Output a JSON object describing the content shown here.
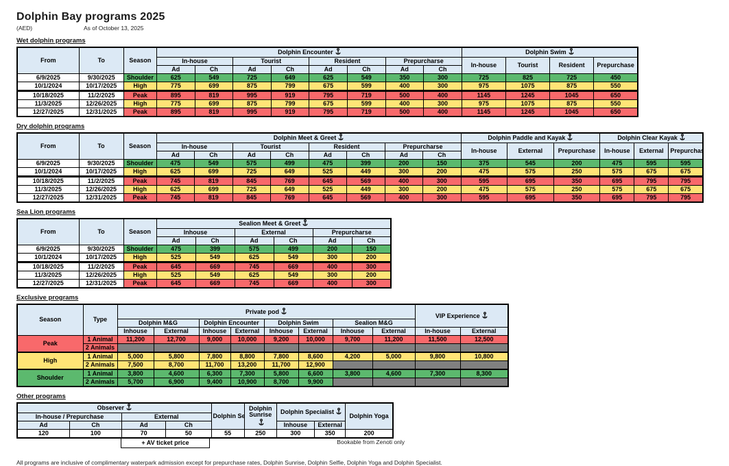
{
  "header": {
    "title": "Dolphin Bay programs 2025",
    "currency": "(AED)",
    "as_of": "As of October 13, 2025"
  },
  "labels": {
    "from": "From",
    "to": "To",
    "season": "Season",
    "type": "Type",
    "ad": "Ad",
    "ch": "Ch",
    "in_house": "In-house",
    "inhouse": "Inhouse",
    "tourist": "Tourist",
    "resident": "Resident",
    "external": "External",
    "prepurchase": "Prepurchase",
    "prepurcharse": "Prepurcharse"
  },
  "wet": {
    "section_title": "Wet dolphin programs",
    "encounter_title": "Dolphin Encounter",
    "swim_title": "Dolphin Swim",
    "rows": [
      {
        "from": "6/9/2025",
        "to": "9/30/2025",
        "season": "Shoulder",
        "tone": "shoulder",
        "values": [
          625,
          549,
          725,
          649,
          625,
          549,
          350,
          300,
          725,
          825,
          725,
          450
        ]
      },
      {
        "from": "10/1/2024",
        "to": "10/17/2025",
        "season": "High",
        "tone": "high",
        "thick": true,
        "values": [
          775,
          699,
          875,
          799,
          675,
          599,
          400,
          300,
          975,
          1075,
          875,
          550
        ]
      },
      {
        "from": "10/18/2025",
        "to": "11/2/2025",
        "season": "Peak",
        "tone": "peak",
        "values": [
          895,
          819,
          995,
          919,
          795,
          719,
          500,
          400,
          1145,
          1245,
          1045,
          650
        ]
      },
      {
        "from": "11/3/2025",
        "to": "12/26/2025",
        "season": "High",
        "tone": "high",
        "values": [
          775,
          699,
          875,
          799,
          675,
          599,
          400,
          300,
          975,
          1075,
          875,
          550
        ]
      },
      {
        "from": "12/27/2025",
        "to": "12/31/2025",
        "season": "Peak",
        "tone": "peak",
        "values": [
          895,
          819,
          995,
          919,
          795,
          719,
          500,
          400,
          1145,
          1245,
          1045,
          650
        ]
      }
    ]
  },
  "dry": {
    "section_title": "Dry dolphin programs",
    "mg_title": "Dolphin Meet & Greet",
    "paddle_title": "Dolphin Paddle and Kayak",
    "clear_title": "Dolphin Clear Kayak",
    "rows": [
      {
        "from": "6/9/2025",
        "to": "9/30/2025",
        "season": "Shoulder",
        "tone": "shoulder",
        "values": [
          475,
          549,
          575,
          499,
          475,
          399,
          200,
          150,
          375,
          545,
          200,
          475,
          595,
          595
        ]
      },
      {
        "from": "10/1/2024",
        "to": "10/17/2025",
        "season": "High",
        "tone": "high",
        "thick": true,
        "values": [
          625,
          699,
          725,
          649,
          525,
          449,
          300,
          200,
          475,
          575,
          250,
          575,
          675,
          675
        ]
      },
      {
        "from": "10/18/2025",
        "to": "11/2/2025",
        "season": "Peak",
        "tone": "peak",
        "values": [
          745,
          819,
          845,
          769,
          645,
          569,
          400,
          300,
          595,
          695,
          350,
          695,
          795,
          795
        ]
      },
      {
        "from": "11/3/2025",
        "to": "12/26/2025",
        "season": "High",
        "tone": "high",
        "values": [
          625,
          699,
          725,
          649,
          525,
          449,
          300,
          200,
          475,
          575,
          250,
          575,
          675,
          675
        ]
      },
      {
        "from": "12/27/2025",
        "to": "12/31/2025",
        "season": "Peak",
        "tone": "peak",
        "values": [
          745,
          819,
          845,
          769,
          645,
          569,
          400,
          300,
          595,
          695,
          350,
          695,
          795,
          795
        ]
      }
    ]
  },
  "sealion": {
    "section_title": "Sea Lion programs",
    "mg_title": "Sealion Meet & Greet",
    "rows": [
      {
        "from": "6/9/2025",
        "to": "9/30/2025",
        "season": "Shoulder",
        "tone": "shoulder",
        "values": [
          475,
          399,
          575,
          499,
          200,
          150
        ]
      },
      {
        "from": "10/1/2024",
        "to": "10/17/2025",
        "season": "High",
        "tone": "high",
        "thick": true,
        "values": [
          525,
          549,
          625,
          549,
          300,
          200
        ]
      },
      {
        "from": "10/18/2025",
        "to": "11/2/2025",
        "season": "Peak",
        "tone": "peak",
        "values": [
          645,
          669,
          745,
          669,
          400,
          300
        ]
      },
      {
        "from": "11/3/2025",
        "to": "12/26/2025",
        "season": "High",
        "tone": "high",
        "values": [
          525,
          549,
          625,
          549,
          300,
          200
        ]
      },
      {
        "from": "12/27/2025",
        "to": "12/31/2025",
        "season": "Peak",
        "tone": "peak",
        "values": [
          645,
          669,
          745,
          669,
          400,
          300
        ]
      }
    ]
  },
  "exclusive": {
    "section_title": "Exclusive programs",
    "pod_title": "Private pod",
    "vip_title": "VIP Experience",
    "groups": [
      "Dolphin M&G",
      "Dolphin Encounter",
      "Dolphin Swim",
      "Sealion M&G"
    ],
    "rows": [
      {
        "season": "Peak",
        "tone": "peak",
        "type": "1 Animal",
        "values": [
          "11,200",
          "12,700",
          "9,000",
          "10,000",
          "9,200",
          "10,000",
          "9,700",
          "11,200",
          "11,500",
          "12,500"
        ]
      },
      {
        "tone": "peak",
        "type": "2 Animals",
        "values": [
          null,
          null,
          null,
          null,
          null,
          null,
          null,
          null,
          null,
          null
        ]
      },
      {
        "season": "High",
        "tone": "high",
        "type": "1 Animal",
        "block": true,
        "values": [
          "5,000",
          "5,800",
          "7,800",
          "8,800",
          "7,800",
          "8,600",
          "4,200",
          "5,000",
          "9,800",
          "10,800"
        ]
      },
      {
        "tone": "high",
        "type": "2 Animals",
        "values": [
          "7,500",
          "8,700",
          "11,700",
          "13,200",
          "11,700",
          "12,900",
          null,
          null,
          null,
          null
        ]
      },
      {
        "season": "Shoulder",
        "tone": "shoulder",
        "type": "1 Animal",
        "block": true,
        "values": [
          "3,800",
          "4,600",
          "6,300",
          "7,300",
          "5,800",
          "6,600",
          "3,800",
          "4,600",
          "7,300",
          "8,300"
        ]
      },
      {
        "tone": "shoulder",
        "type": "2 Animals",
        "values": [
          "5,700",
          "6,900",
          "9,400",
          "10,900",
          "8,700",
          "9,900",
          null,
          null,
          null,
          null
        ]
      }
    ]
  },
  "other": {
    "section_title": "Other programs",
    "observer_title": "Observer",
    "inhouse_prepurchase": "In-house / Prepurchase",
    "selfie_title": "Dolphin Selfie",
    "sunrise_title": "Dolphin Sunrise",
    "specialist_title": "Dolphin Specialist",
    "yoga_title": "Dolphin Yoga",
    "values": [
      "120",
      "100",
      "70",
      "50",
      "55",
      "250",
      "300",
      "350",
      "200"
    ],
    "av_note": "+ AV ticket price",
    "zenoti_note": "Bookable from Zenoti only"
  },
  "footnote": "All programs are inclusive of complimentary waterpark admission except for prepurchase rates, Dolphin Sunrise,  Dolphin Selfie, Dolphin Yoga and Dolphin Specialist."
}
